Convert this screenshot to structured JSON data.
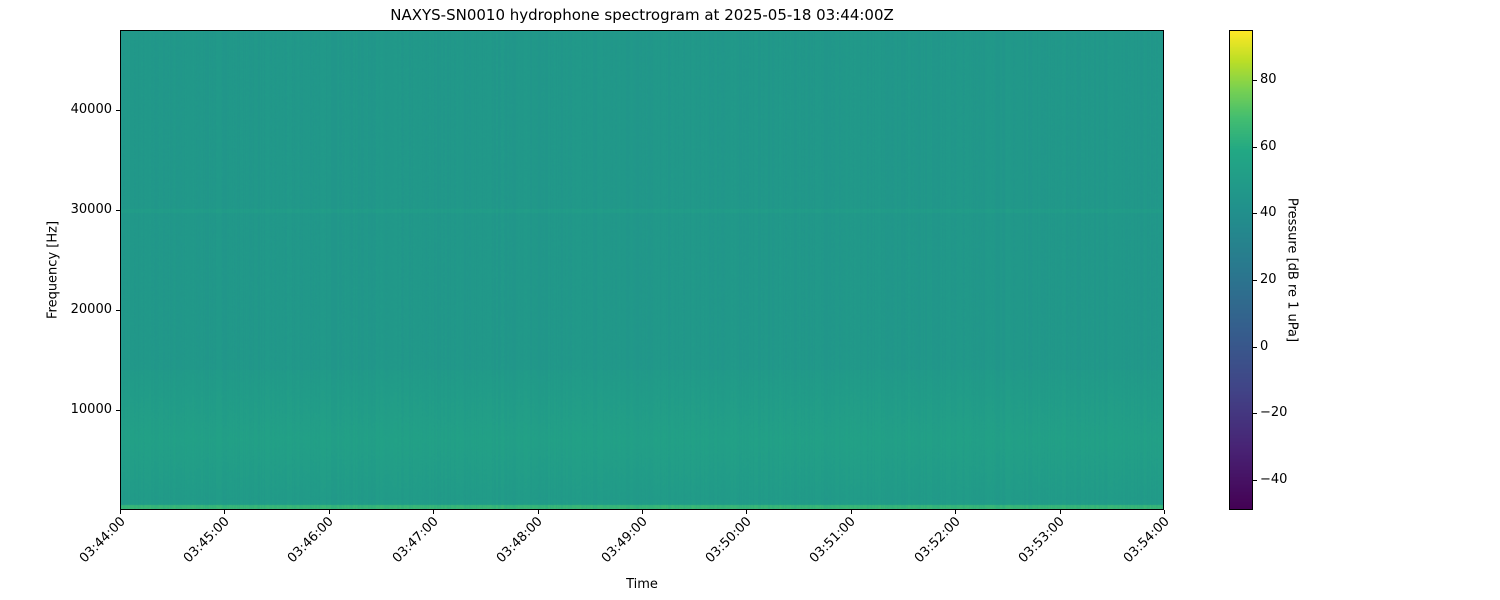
{
  "chart_data": {
    "type": "heatmap",
    "title": "NAXYS-SN0010 hydrophone spectrogram at 2025-05-18 03:44:00Z",
    "xlabel": "Time",
    "ylabel": "Frequency [Hz]",
    "x_ticks": [
      "03:44:00",
      "03:45:00",
      "03:46:00",
      "03:47:00",
      "03:48:00",
      "03:49:00",
      "03:50:00",
      "03:51:00",
      "03:52:00",
      "03:53:00",
      "03:54:00"
    ],
    "xlim": [
      "03:44:00",
      "03:54:00"
    ],
    "y_ticks": [
      10000,
      20000,
      30000,
      40000
    ],
    "ylim": [
      0,
      48000
    ],
    "colormap": "viridis",
    "colorbar": {
      "label": "Pressure [dB re 1 uPa]",
      "ticks": [
        -40,
        -20,
        0,
        20,
        40,
        60,
        80
      ],
      "range": [
        -49,
        95
      ]
    },
    "levels_db": {
      "background": 47,
      "band_1000_14000_hz": 53,
      "lowest_band_below_500_hz": 65,
      "line_near_30000_hz": 50
    },
    "grid": false
  }
}
